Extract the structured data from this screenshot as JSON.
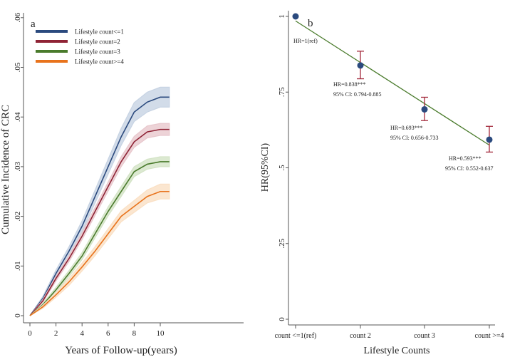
{
  "chart_data": [
    {
      "type": "line",
      "panel_label": "a",
      "title": "",
      "xlabel": "Years of Follow-up(years)",
      "ylabel": "Cumulative Incidence of CRC",
      "xlim": [
        0,
        11.5
      ],
      "ylim": [
        0,
        0.06
      ],
      "xticks": [
        0,
        2,
        4,
        6,
        8,
        10
      ],
      "xtick_labels": [
        "0",
        "2",
        "4",
        "6",
        "8",
        "10"
      ],
      "yticks": [
        0,
        0.01,
        0.02,
        0.03,
        0.04,
        0.05,
        0.06
      ],
      "ytick_labels": [
        "0",
        ".01",
        ".02",
        ".03",
        ".04",
        ".05",
        ".06"
      ],
      "legend_placement": "top-left",
      "x": [
        0,
        1,
        2,
        3,
        4,
        5,
        6,
        7,
        8,
        9,
        10,
        10.7
      ],
      "series": [
        {
          "name": "Lifestyle count<=1",
          "color": "#2b4a7e",
          "band": "#c7d3e3",
          "values": [
            0,
            0.0035,
            0.0085,
            0.013,
            0.018,
            0.024,
            0.03,
            0.036,
            0.041,
            0.043,
            0.044,
            0.044
          ],
          "ci_halfwidth": [
            0,
            0.0004,
            0.0007,
            0.0009,
            0.0011,
            0.0013,
            0.0015,
            0.0017,
            0.0019,
            0.002,
            0.002,
            0.002
          ]
        },
        {
          "name": "Lifestyle count=2",
          "color": "#8f2335",
          "band": "#e8c8cd",
          "values": [
            0,
            0.003,
            0.0075,
            0.0115,
            0.016,
            0.021,
            0.026,
            0.031,
            0.035,
            0.037,
            0.0375,
            0.0375
          ],
          "ci_halfwidth": [
            0,
            0.0003,
            0.0005,
            0.0006,
            0.0007,
            0.0008,
            0.0009,
            0.001,
            0.0011,
            0.0012,
            0.0012,
            0.0012
          ]
        },
        {
          "name": "Lifestyle count=3",
          "color": "#4a7b2c",
          "band": "#d3e3c6",
          "values": [
            0,
            0.0022,
            0.0052,
            0.0085,
            0.012,
            0.0165,
            0.021,
            0.025,
            0.029,
            0.0305,
            0.031,
            0.031
          ],
          "ci_halfwidth": [
            0,
            0.0003,
            0.0005,
            0.0006,
            0.0007,
            0.0008,
            0.0009,
            0.001,
            0.001,
            0.001,
            0.001,
            0.001
          ]
        },
        {
          "name": "Lifestyle count>=4",
          "color": "#e8731c",
          "band": "#fae0c4",
          "values": [
            0,
            0.0018,
            0.0042,
            0.0068,
            0.0098,
            0.013,
            0.0165,
            0.02,
            0.022,
            0.024,
            0.025,
            0.025
          ],
          "ci_halfwidth": [
            0,
            0.0003,
            0.0005,
            0.0007,
            0.0008,
            0.0009,
            0.001,
            0.0011,
            0.0012,
            0.0013,
            0.0015,
            0.0015
          ]
        }
      ]
    },
    {
      "type": "scatter",
      "panel_label": "b",
      "title": "",
      "xlabel": "Lifestyle Counts",
      "ylabel": "HR(95%CI)",
      "ylim": [
        0,
        1
      ],
      "yticks": [
        0,
        0.25,
        0.5,
        0.75,
        1
      ],
      "ytick_labels": [
        "0",
        ".25",
        ".5",
        ".75",
        "1"
      ],
      "categories": [
        "count <=1(ref)",
        "count 2",
        "count 3",
        "count >=4"
      ],
      "values": [
        1,
        0.838,
        0.693,
        0.593
      ],
      "ci_low": [
        null,
        0.794,
        0.656,
        0.552
      ],
      "ci_high": [
        null,
        0.885,
        0.733,
        0.637
      ],
      "annotations": [
        {
          "hr": "HR=1(ref)",
          "ci": ""
        },
        {
          "hr": "HR=0.838***",
          "ci": "95% CI: 0.794-0.885"
        },
        {
          "hr": "HR=0.693***",
          "ci": "95% CI: 0.656-0.733"
        },
        {
          "hr": "HR=0.593***",
          "ci": "95% CI: 0.552-0.637"
        }
      ],
      "fit_line": {
        "start": 0.985,
        "end": 0.575,
        "color": "#4a7b2c"
      },
      "point_color": "#2b4a7e",
      "errorbar_color": "#a32a3c"
    }
  ]
}
